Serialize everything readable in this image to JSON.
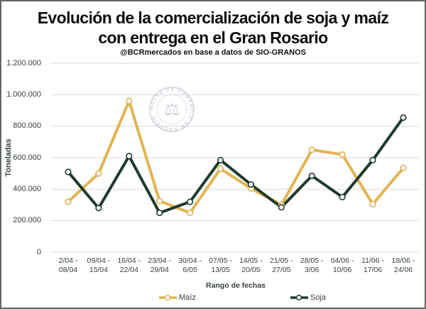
{
  "header": {
    "title_line1": "Evolución de la comercialización de soja y maíz",
    "title_line2": "con entrega en el Gran Rosario",
    "subtitle": "@BCRmercados en base a datos de SIO-GRANOS"
  },
  "watermark": {
    "ring_text": "BOLSA DE COMERCIO DE ROSARIO",
    "icon": "scales-caduceus-seal",
    "color": "#c3c9d4"
  },
  "chart_data": {
    "type": "line",
    "title": "Evolución de la comercialización de soja y maíz con entrega en el Gran Rosario",
    "subtitle": "@BCRmercados en base a datos de SIO-GRANOS",
    "xlabel": "Rango de fechas",
    "ylabel": "Toneladas",
    "ylim": [
      0,
      1200000
    ],
    "grid": "horizontal",
    "marker": "open-circle",
    "legend_position": "bottom",
    "y_ticks": [
      {
        "value": 1200000,
        "label": "1.200.000"
      },
      {
        "value": 1000000,
        "label": "1.000.000"
      },
      {
        "value": 800000,
        "label": "800.000"
      },
      {
        "value": 600000,
        "label": "600.000"
      },
      {
        "value": 400000,
        "label": "400.000"
      },
      {
        "value": 200000,
        "label": "200.000"
      },
      {
        "value": 0,
        "label": "0"
      }
    ],
    "categories": [
      {
        "l1": "2/04 -",
        "l2": "08/04"
      },
      {
        "l1": "09/04 -",
        "l2": "15/04"
      },
      {
        "l1": "16/04 -",
        "l2": "22/04"
      },
      {
        "l1": "23/04 -",
        "l2": "29/04"
      },
      {
        "l1": "30/04 -",
        "l2": "6/05"
      },
      {
        "l1": "07/05 -",
        "l2": "13/05"
      },
      {
        "l1": "14/05 -",
        "l2": "20/05"
      },
      {
        "l1": "21/05 -",
        "l2": "27/05"
      },
      {
        "l1": "28/05 -",
        "l2": "3/06"
      },
      {
        "l1": "04/06 -",
        "l2": "10/06"
      },
      {
        "l1": "11/06 -",
        "l2": "17/06"
      },
      {
        "l1": "18/06 -",
        "l2": "24/06"
      }
    ],
    "series": [
      {
        "name": "Maíz",
        "color": "#E2B452",
        "values": [
          320000,
          500000,
          960000,
          325000,
          250000,
          530000,
          405000,
          300000,
          650000,
          620000,
          305000,
          535000
        ]
      },
      {
        "name": "Soja",
        "color": "#1F3B2B",
        "values": [
          510000,
          280000,
          610000,
          250000,
          320000,
          585000,
          430000,
          285000,
          485000,
          350000,
          585000,
          855000
        ]
      }
    ],
    "colors": {
      "gridline": "#d9d9d9",
      "tick_text": "#33403a"
    }
  }
}
